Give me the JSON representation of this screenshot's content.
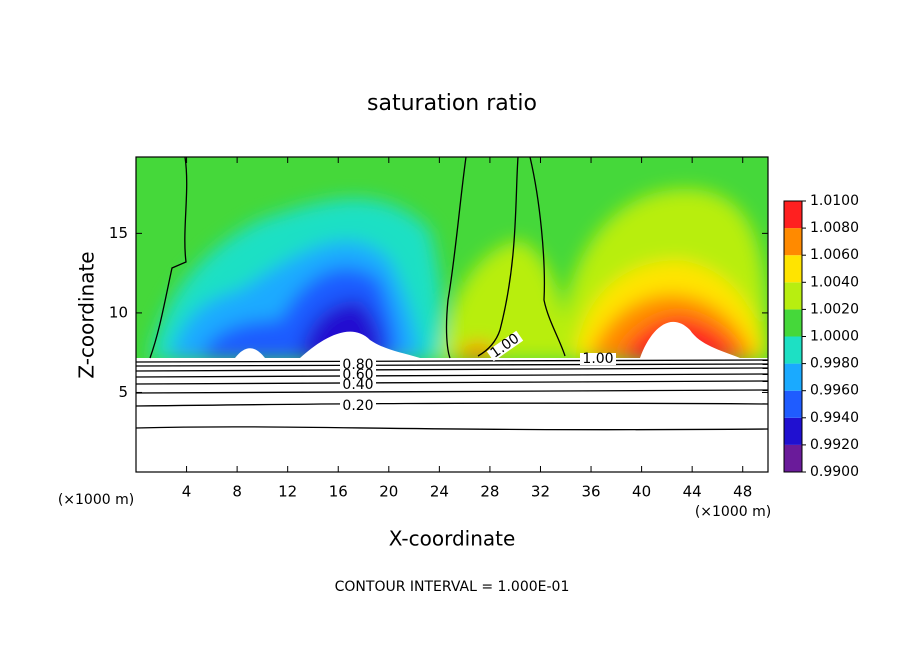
{
  "chart_data": {
    "type": "contour",
    "title": "saturation ratio",
    "x_label": "X-coordinate",
    "y_label": "Z-coordinate",
    "x_unit": "(×1000 m)",
    "y_unit": "(×1000 m)",
    "footer": "CONTOUR INTERVAL = 1.000E-01",
    "xlim": [
      0,
      50
    ],
    "xticks": [
      4,
      8,
      12,
      16,
      20,
      24,
      28,
      32,
      36,
      40,
      44,
      48
    ],
    "ylim": [
      0,
      19.8
    ],
    "yticks": [
      5,
      10,
      15
    ],
    "clim": [
      0.99,
      1.01
    ],
    "cticks": [
      {
        "value": 0.99,
        "label": "0.9900"
      },
      {
        "value": 0.992,
        "label": "0.9920"
      },
      {
        "value": 0.994,
        "label": "0.9940"
      },
      {
        "value": 0.996,
        "label": "0.9960"
      },
      {
        "value": 0.998,
        "label": "0.9980"
      },
      {
        "value": 1.0,
        "label": "1.0000"
      },
      {
        "value": 1.002,
        "label": "1.0020"
      },
      {
        "value": 1.004,
        "label": "1.0040"
      },
      {
        "value": 1.006,
        "label": "1.0060"
      },
      {
        "value": 1.008,
        "label": "1.0080"
      },
      {
        "value": 1.01,
        "label": "1.0100"
      }
    ],
    "colors": [
      "#6a1b9a",
      "#2010d0",
      "#1f5cff",
      "#1aaaff",
      "#1de0c4",
      "#45d83a",
      "#b8ee10",
      "#ffe400",
      "#ff8a00",
      "#ff2020"
    ],
    "contour_labels": [
      {
        "value": 1.0,
        "label": "1.00"
      },
      {
        "value": 1.0,
        "label": "1.00"
      },
      {
        "value": 0.8,
        "label": "0.80"
      },
      {
        "value": 0.6,
        "label": "0.60"
      },
      {
        "value": 0.4,
        "label": "0.40"
      },
      {
        "value": 0.2,
        "label": "0.20"
      }
    ]
  }
}
